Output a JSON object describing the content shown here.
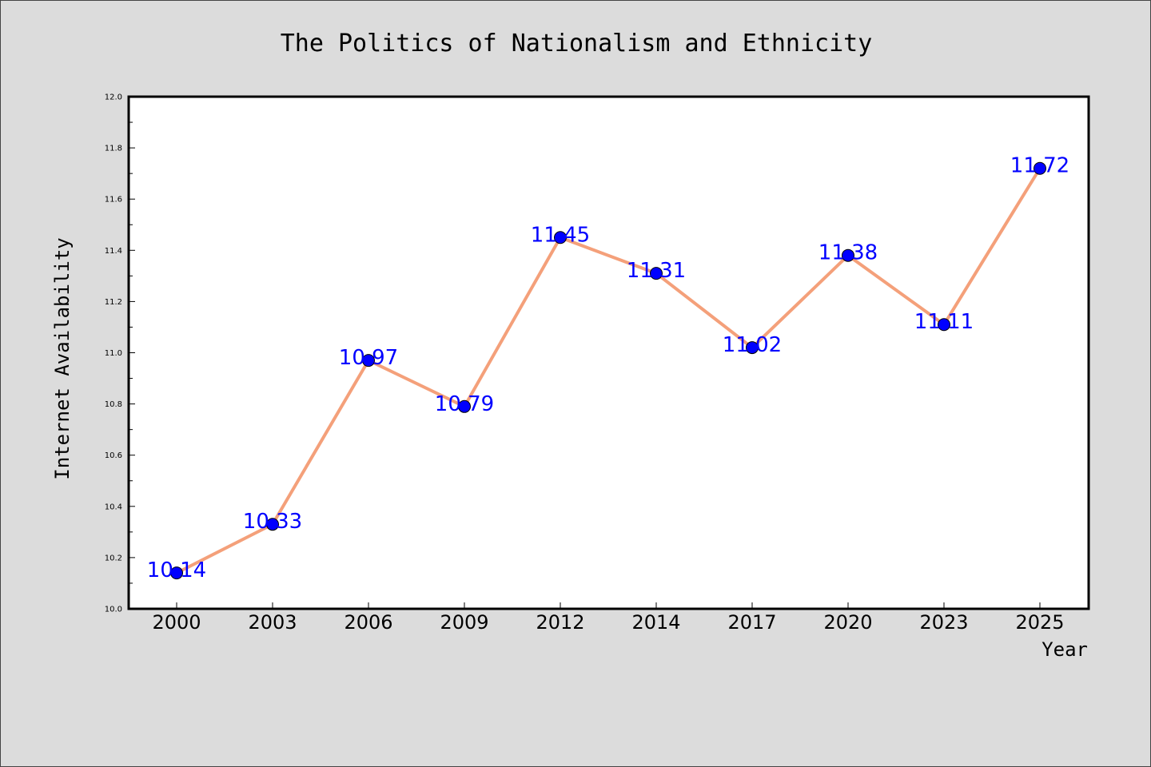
{
  "chart_data": {
    "type": "line",
    "title": "The Politics of Nationalism and Ethnicity",
    "xlabel": "Year",
    "ylabel": "Internet Availability",
    "categories": [
      "2000",
      "2003",
      "2006",
      "2009",
      "2012",
      "2014",
      "2017",
      "2020",
      "2023",
      "2025"
    ],
    "series": [
      {
        "values": [
          10.14,
          10.33,
          10.97,
          10.79,
          11.45,
          11.31,
          11.02,
          11.38,
          11.11,
          11.72
        ]
      }
    ],
    "data_labels": [
      "10.14",
      "10.33",
      "10.97",
      "10.79",
      "11.45",
      "11.31",
      "11.02",
      "11.38",
      "11.11",
      "11.72"
    ],
    "ylim": [
      10.0,
      12.0
    ],
    "yticks": [
      "10.0",
      "10.2",
      "10.4",
      "10.6",
      "10.8",
      "11.0",
      "11.2",
      "11.4",
      "11.6",
      "11.8",
      "12.0"
    ],
    "grid": false,
    "legend": "none",
    "colors": {
      "background": "#dcdcdc",
      "plot_area": "#ffffff",
      "line": "#f4a07a",
      "marker": "#0000ff",
      "data_label": "#0000ff"
    }
  }
}
